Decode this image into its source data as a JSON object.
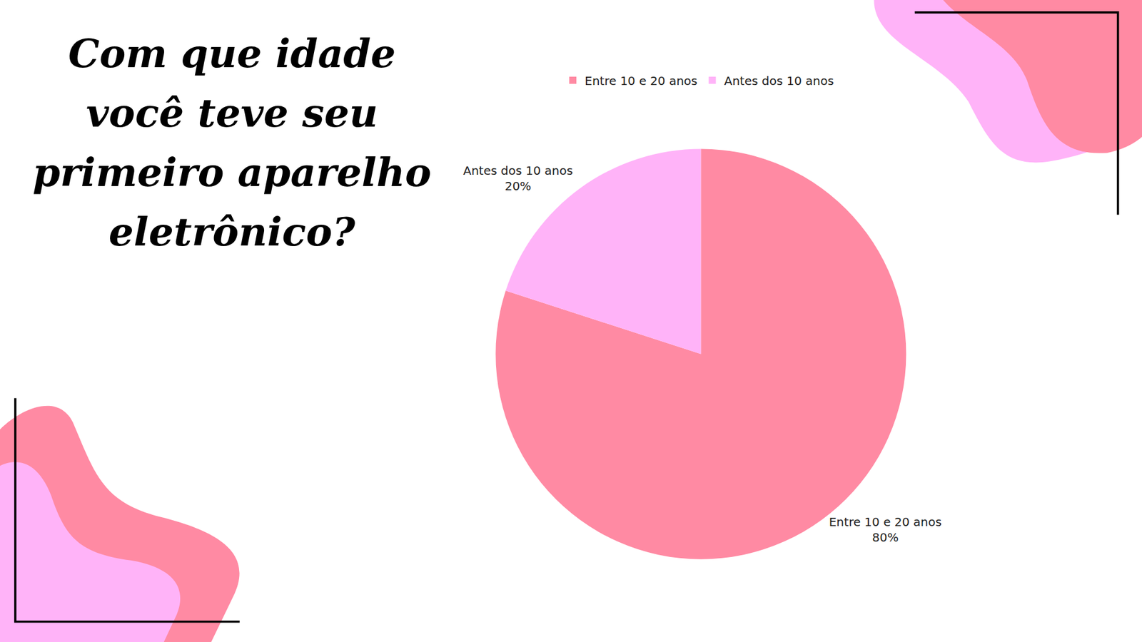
{
  "chart_data": {
    "type": "pie",
    "title": "Com que idade você teve seu primeiro aparelho eletrônico?",
    "categories": [
      "Entre 10 e 20 anos",
      "Antes dos 10 anos"
    ],
    "values": [
      80,
      20
    ],
    "value_labels": [
      "80%",
      "20%"
    ],
    "colors": [
      "#ff8aa3",
      "#ffb3f8"
    ],
    "legend": "top",
    "data_labels": true
  }
}
